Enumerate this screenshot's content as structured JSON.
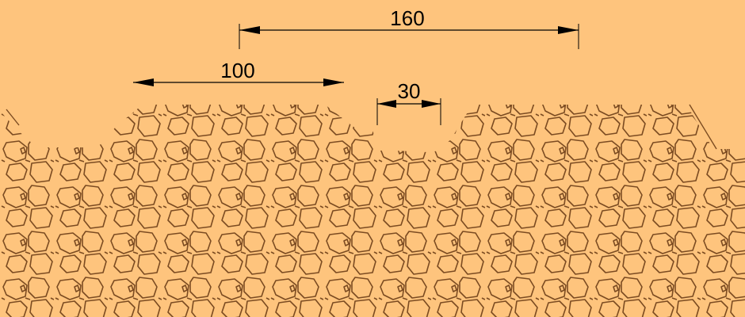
{
  "colors": {
    "background": "#fec47d",
    "stone_stroke": "#7b4b21",
    "dimension_line": "#000000"
  },
  "dimensions": {
    "overall_span": {
      "label": "160"
    },
    "profile_width": {
      "label": "100"
    },
    "gap_width": {
      "label": "30"
    }
  }
}
